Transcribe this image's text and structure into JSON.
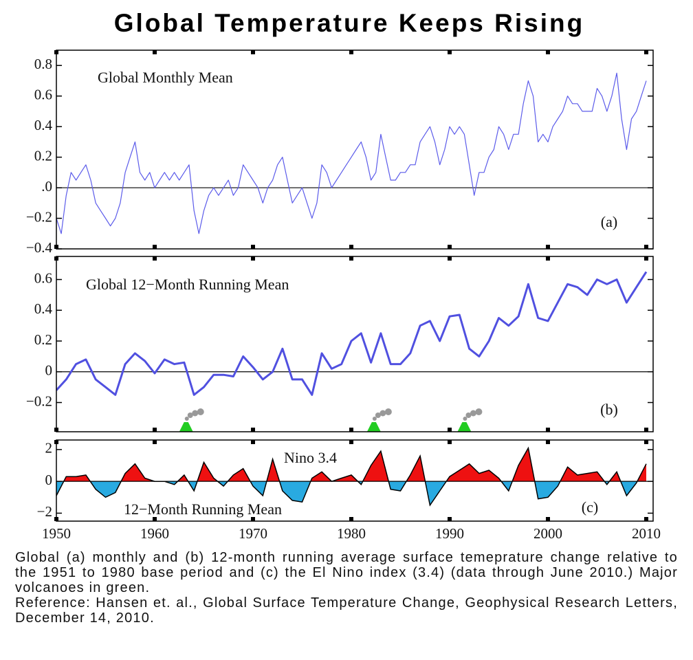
{
  "title": "Global Temperature Keeps Rising",
  "caption": "Global (a) monthly and (b) 12-month running average surface temeprature change relative to the 1951 to 1980 base period and (c) the El Nino index (3.4) (data through June 2010.) Major volcanoes in green.",
  "reference": "Reference: Hansen et. al., Global Surface Temperature Change, Geophysical Research Letters, December 14, 2010.",
  "chart_data": [
    {
      "type": "line",
      "color": "#5b5bea",
      "annotations": [
        "Global Monthly Mean",
        "(a)"
      ],
      "xlim": [
        1950,
        2010.7
      ],
      "xticks": [
        1950,
        1960,
        1970,
        1980,
        1990,
        2000,
        2010
      ],
      "ylim": [
        -0.4,
        0.9
      ],
      "yticks": [
        {
          "value": -0.4,
          "label": "−0.4"
        },
        {
          "value": -0.2,
          "label": "−0.2"
        },
        {
          "value": 0,
          "label": ".0"
        },
        0.2,
        0.4,
        0.6,
        0.8
      ],
      "x": [
        1950,
        1950.5,
        1951,
        1951.5,
        1952,
        1952.5,
        1953,
        1953.5,
        1954,
        1954.5,
        1955,
        1955.5,
        1956,
        1956.5,
        1957,
        1957.5,
        1958,
        1958.5,
        1959,
        1959.5,
        1960,
        1960.5,
        1961,
        1961.5,
        1962,
        1962.5,
        1963,
        1963.5,
        1964,
        1964.5,
        1965,
        1965.5,
        1966,
        1966.5,
        1967,
        1967.5,
        1968,
        1968.5,
        1969,
        1969.5,
        1970,
        1970.5,
        1971,
        1971.5,
        1972,
        1972.5,
        1973,
        1973.5,
        1974,
        1974.5,
        1975,
        1975.5,
        1976,
        1976.5,
        1977,
        1977.5,
        1978,
        1978.5,
        1979,
        1979.5,
        1980,
        1980.5,
        1981,
        1981.5,
        1982,
        1982.5,
        1983,
        1983.5,
        1984,
        1984.5,
        1985,
        1985.5,
        1986,
        1986.5,
        1987,
        1987.5,
        1988,
        1988.5,
        1989,
        1989.5,
        1990,
        1990.5,
        1991,
        1991.5,
        1992,
        1992.5,
        1993,
        1993.5,
        1994,
        1994.5,
        1995,
        1995.5,
        1996,
        1996.5,
        1997,
        1997.5,
        1998,
        1998.5,
        1999,
        1999.5,
        2000,
        2000.5,
        2001,
        2001.5,
        2002,
        2002.5,
        2003,
        2003.5,
        2004,
        2004.5,
        2005,
        2005.5,
        2006,
        2006.5,
        2007,
        2007.5,
        2008,
        2008.5,
        2009,
        2009.5,
        2010
      ],
      "values": [
        -0.2,
        -0.3,
        -0.05,
        0.1,
        0.05,
        0.1,
        0.15,
        0.05,
        -0.1,
        -0.15,
        -0.2,
        -0.25,
        -0.2,
        -0.1,
        0.1,
        0.2,
        0.3,
        0.1,
        0.05,
        0.1,
        0.0,
        0.05,
        0.1,
        0.05,
        0.1,
        0.05,
        0.1,
        0.15,
        -0.15,
        -0.3,
        -0.15,
        -0.05,
        0.0,
        -0.05,
        0.0,
        0.05,
        -0.05,
        0.0,
        0.15,
        0.1,
        0.05,
        0.0,
        -0.1,
        0.0,
        0.05,
        0.15,
        0.2,
        0.05,
        -0.1,
        -0.05,
        0.0,
        -0.1,
        -0.2,
        -0.1,
        0.15,
        0.1,
        0.0,
        0.05,
        0.1,
        0.15,
        0.2,
        0.25,
        0.3,
        0.2,
        0.05,
        0.1,
        0.35,
        0.2,
        0.05,
        0.05,
        0.1,
        0.1,
        0.15,
        0.15,
        0.3,
        0.35,
        0.4,
        0.3,
        0.15,
        0.25,
        0.4,
        0.35,
        0.4,
        0.35,
        0.15,
        -0.05,
        0.1,
        0.1,
        0.2,
        0.25,
        0.4,
        0.35,
        0.25,
        0.35,
        0.35,
        0.55,
        0.7,
        0.6,
        0.3,
        0.35,
        0.3,
        0.4,
        0.45,
        0.5,
        0.6,
        0.55,
        0.55,
        0.5,
        0.5,
        0.5,
        0.65,
        0.6,
        0.5,
        0.6,
        0.75,
        0.45,
        0.25,
        0.45,
        0.5,
        0.6,
        0.7
      ]
    },
    {
      "type": "line",
      "color": "#5050e0",
      "annotations": [
        "Global 12−Month Running Mean",
        "(b)"
      ],
      "volcanoes": [
        1963.2,
        1982.3,
        1991.5
      ],
      "volcano_color": "#22cc22",
      "xlim": [
        1950,
        2010.7
      ],
      "xticks": [
        1950,
        1960,
        1970,
        1980,
        1990,
        2000,
        2010
      ],
      "ylim": [
        -0.39,
        0.75
      ],
      "yticks": [
        {
          "value": -0.2,
          "label": "−0.2"
        },
        0,
        0.2,
        0.4,
        0.6
      ],
      "x": [
        1950,
        1951,
        1952,
        1953,
        1954,
        1955,
        1956,
        1957,
        1958,
        1959,
        1960,
        1961,
        1962,
        1963,
        1964,
        1965,
        1966,
        1967,
        1968,
        1969,
        1970,
        1971,
        1972,
        1973,
        1974,
        1975,
        1976,
        1977,
        1978,
        1979,
        1980,
        1981,
        1982,
        1983,
        1984,
        1985,
        1986,
        1987,
        1988,
        1989,
        1990,
        1991,
        1992,
        1993,
        1994,
        1995,
        1996,
        1997,
        1998,
        1999,
        2000,
        2001,
        2002,
        2003,
        2004,
        2005,
        2006,
        2007,
        2008,
        2009,
        2010
      ],
      "values": [
        -0.12,
        -0.05,
        0.05,
        0.08,
        -0.05,
        -0.1,
        -0.15,
        0.05,
        0.12,
        0.07,
        -0.01,
        0.08,
        0.05,
        0.06,
        -0.15,
        -0.1,
        -0.02,
        -0.02,
        -0.03,
        0.1,
        0.03,
        -0.05,
        0.0,
        0.15,
        -0.05,
        -0.05,
        -0.15,
        0.12,
        0.02,
        0.05,
        0.2,
        0.25,
        0.06,
        0.25,
        0.05,
        0.05,
        0.12,
        0.3,
        0.33,
        0.2,
        0.36,
        0.37,
        0.15,
        0.1,
        0.2,
        0.35,
        0.3,
        0.36,
        0.57,
        0.35,
        0.33,
        0.45,
        0.57,
        0.55,
        0.5,
        0.6,
        0.57,
        0.6,
        0.45,
        0.55,
        0.65
      ]
    },
    {
      "type": "area",
      "pos_color": "#ee1111",
      "neg_color": "#29aae1",
      "annotations": [
        "Nino 3.4",
        "12−Month Running Mean",
        "(c)"
      ],
      "xlim": [
        1950,
        2010.7
      ],
      "xticks": [
        1950,
        1960,
        1970,
        1980,
        1990,
        2000,
        2010
      ],
      "xtick_labels": true,
      "ylim": [
        -2.5,
        2.6
      ],
      "yticks": [
        {
          "value": -2,
          "label": "−2"
        },
        0,
        2
      ],
      "x": [
        1950,
        1951,
        1952,
        1953,
        1954,
        1955,
        1956,
        1957,
        1958,
        1959,
        1960,
        1961,
        1962,
        1963,
        1964,
        1965,
        1966,
        1967,
        1968,
        1969,
        1970,
        1971,
        1972,
        1973,
        1974,
        1975,
        1976,
        1977,
        1978,
        1979,
        1980,
        1981,
        1982,
        1983,
        1984,
        1985,
        1986,
        1987,
        1988,
        1989,
        1990,
        1991,
        1992,
        1993,
        1994,
        1995,
        1996,
        1997,
        1998,
        1999,
        2000,
        2001,
        2002,
        2003,
        2004,
        2005,
        2006,
        2007,
        2008,
        2009,
        2010
      ],
      "values": [
        -0.9,
        0.3,
        0.3,
        0.4,
        -0.5,
        -1.0,
        -0.7,
        0.5,
        1.1,
        0.2,
        0.0,
        0.0,
        -0.2,
        0.4,
        -0.6,
        1.2,
        0.2,
        -0.3,
        0.4,
        0.8,
        -0.3,
        -0.9,
        1.4,
        -0.6,
        -1.2,
        -1.3,
        0.2,
        0.6,
        0.0,
        0.2,
        0.4,
        -0.2,
        1.0,
        1.9,
        -0.5,
        -0.6,
        0.4,
        1.6,
        -1.5,
        -0.6,
        0.3,
        0.7,
        1.1,
        0.5,
        0.7,
        0.2,
        -0.6,
        1.0,
        2.1,
        -1.1,
        -1.0,
        -0.3,
        0.9,
        0.4,
        0.5,
        0.6,
        -0.2,
        0.6,
        -0.9,
        -0.1,
        1.1
      ]
    }
  ]
}
